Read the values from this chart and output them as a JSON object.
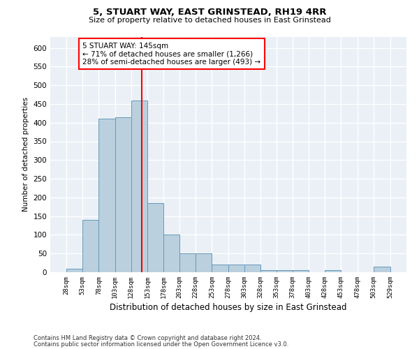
{
  "title": "5, STUART WAY, EAST GRINSTEAD, RH19 4RR",
  "subtitle": "Size of property relative to detached houses in East Grinstead",
  "xlabel": "Distribution of detached houses by size in East Grinstead",
  "ylabel": "Number of detached properties",
  "bar_color": "#bad0de",
  "bar_edge_color": "#6699bb",
  "background_color": "#eaf0f6",
  "grid_color": "#ffffff",
  "annotation_text": "5 STUART WAY: 145sqm\n← 71% of detached houses are smaller (1,266)\n28% of semi-detached houses are larger (493) →",
  "red_line_x": 145,
  "bin_edges": [
    28,
    53,
    78,
    103,
    128,
    153,
    178,
    203,
    228,
    253,
    278,
    303,
    328,
    353,
    378,
    403,
    428,
    453,
    478,
    503,
    529
  ],
  "bar_heights": [
    10,
    140,
    410,
    415,
    460,
    185,
    100,
    50,
    50,
    20,
    20,
    20,
    5,
    5,
    5,
    0,
    5,
    0,
    0,
    15
  ],
  "ylim": [
    0,
    630
  ],
  "yticks": [
    0,
    50,
    100,
    150,
    200,
    250,
    300,
    350,
    400,
    450,
    500,
    550,
    600
  ],
  "footnote1": "Contains HM Land Registry data © Crown copyright and database right 2024.",
  "footnote2": "Contains public sector information licensed under the Open Government Licence v3.0."
}
